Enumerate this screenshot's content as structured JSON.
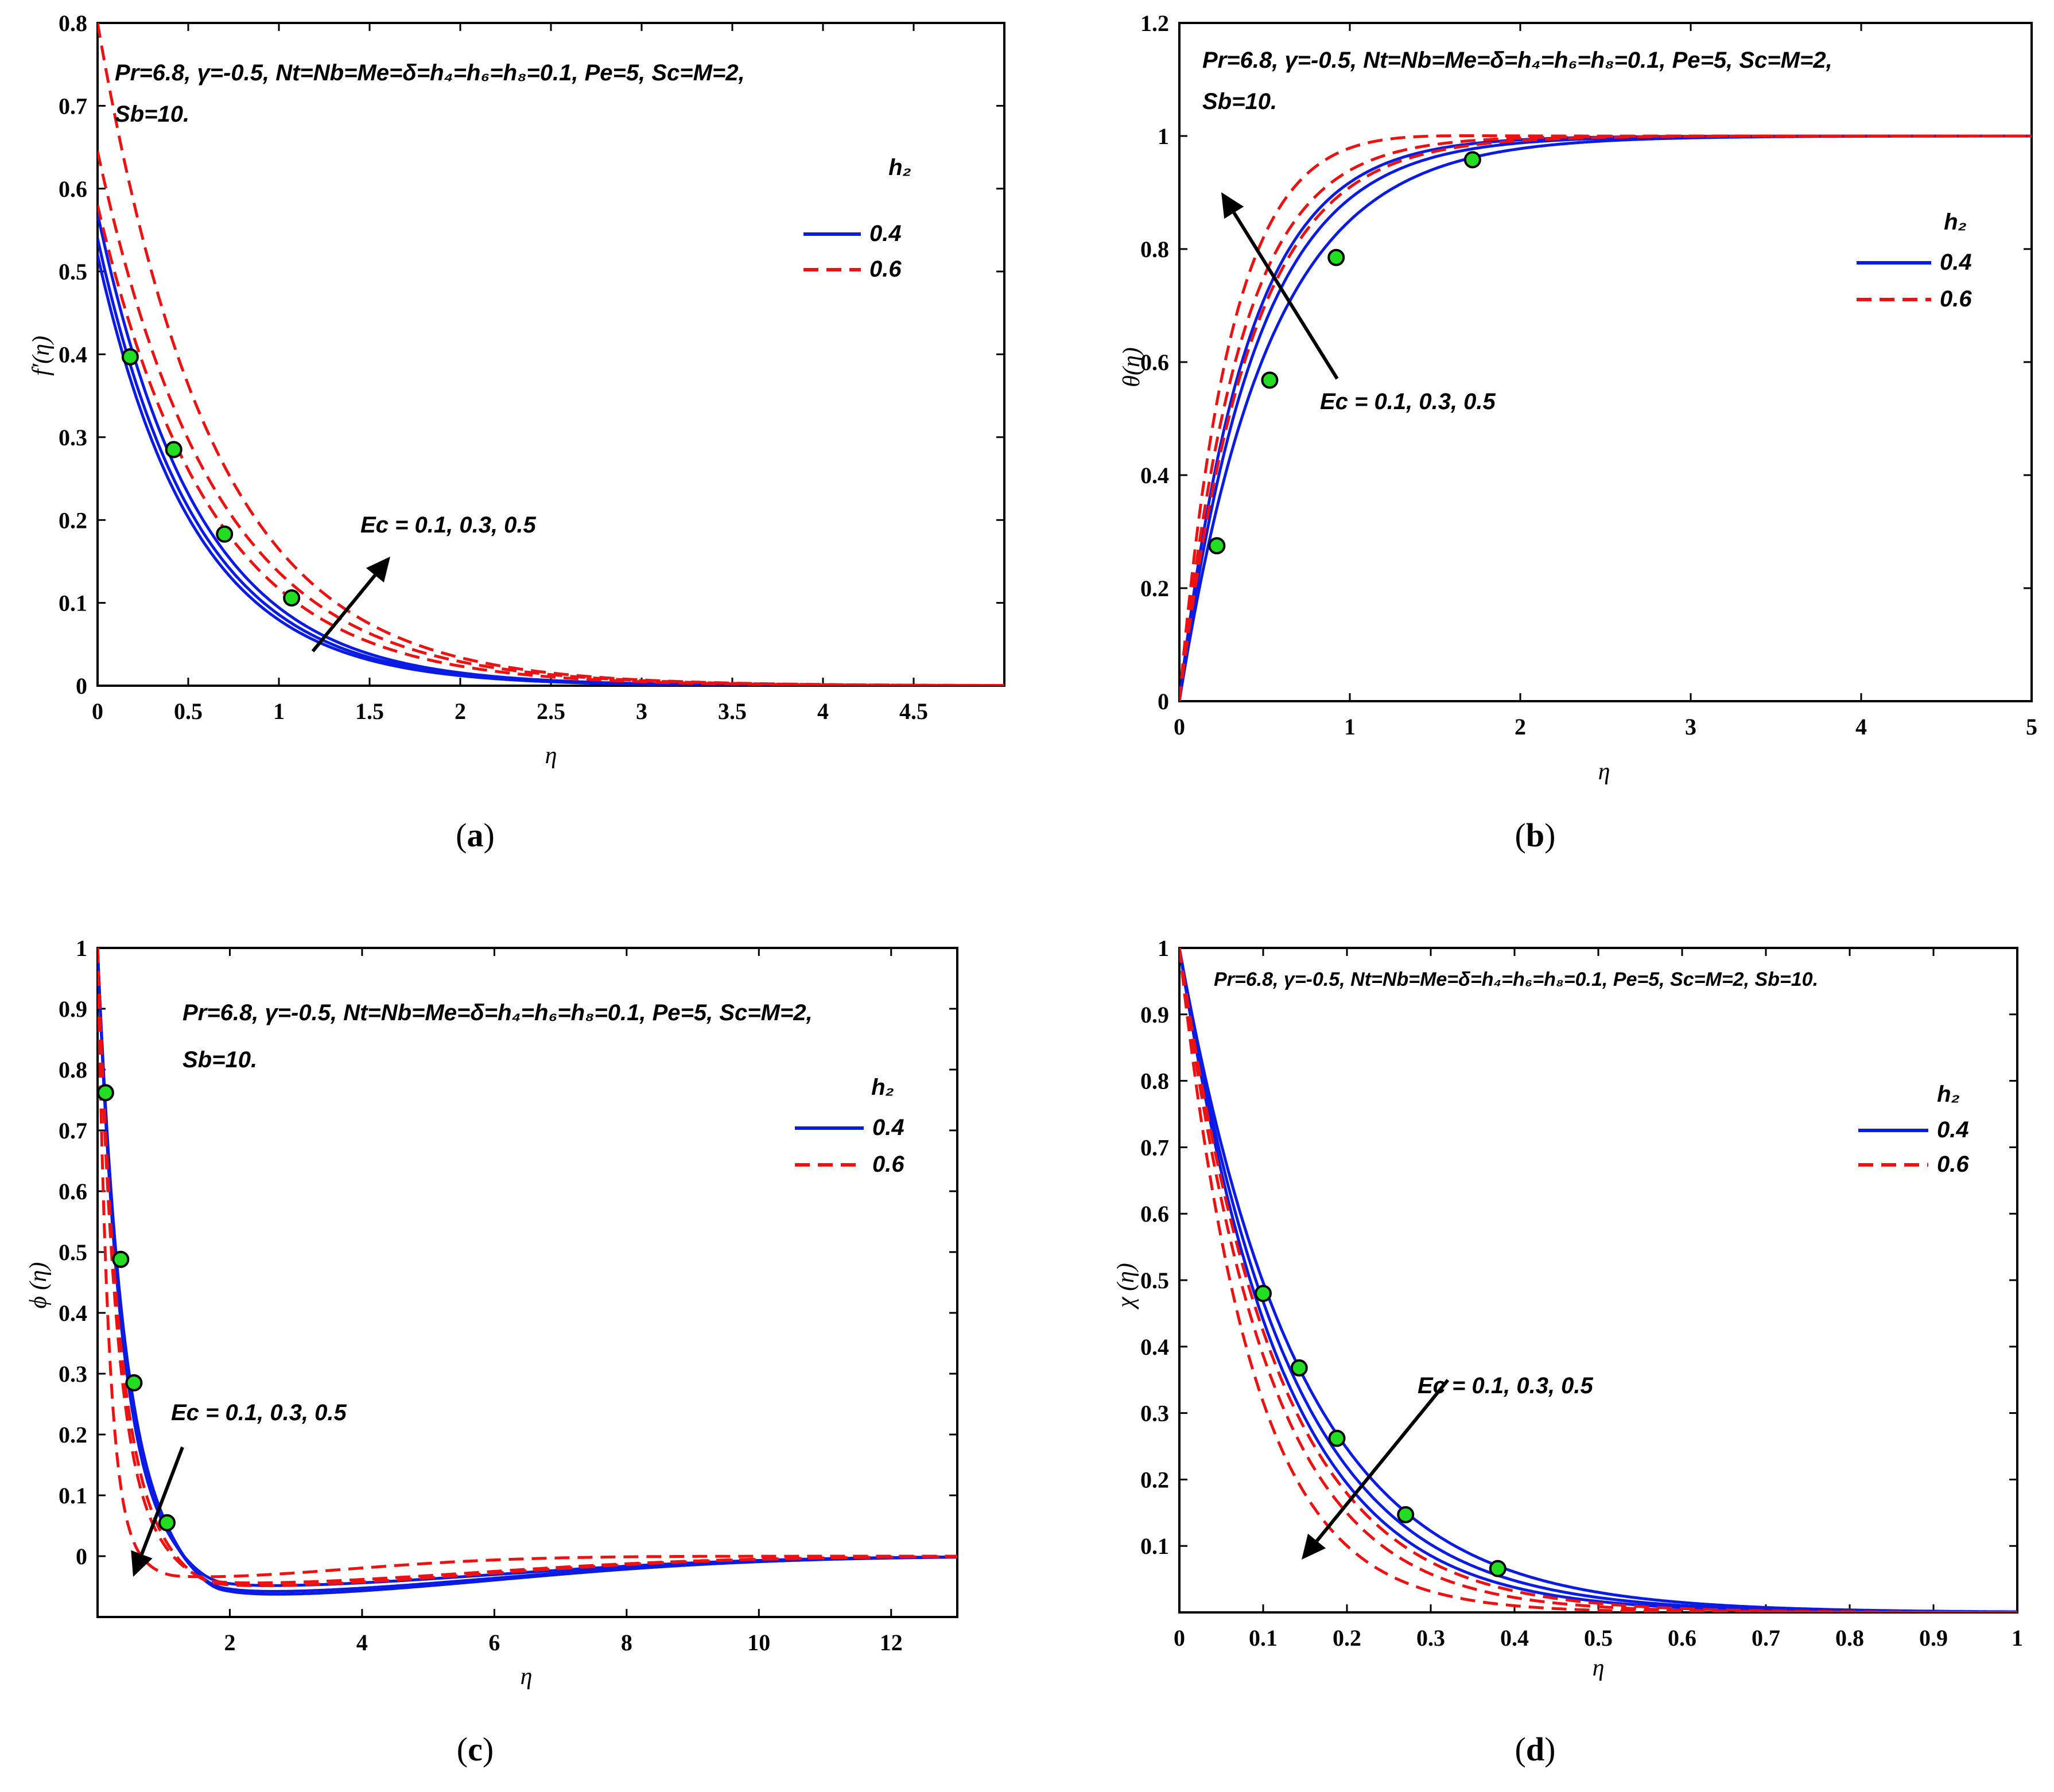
{
  "figure": {
    "colors": {
      "solid": "#0b1be6",
      "dashed": "#ee1111",
      "marker": "#22dd22",
      "arrow": "#000000"
    }
  },
  "chart_data": [
    {
      "id": "a",
      "type": "line",
      "caption": "(a)",
      "xlabel": "η",
      "ylabel": "f′(η)",
      "xlim": [
        0,
        5
      ],
      "ylim": [
        0,
        0.8
      ],
      "xticks": [
        "0",
        "0.5",
        "1",
        "1.5",
        "2",
        "2.5",
        "3",
        "3.5",
        "4",
        "4.5"
      ],
      "yticks": [
        "0",
        "0.1",
        "0.2",
        "0.3",
        "0.4",
        "0.5",
        "0.6",
        "0.7",
        "0.8"
      ],
      "params": [
        "Pr=6.8,  γ=-0.5, Nt=Nb=Me=δ=h₄=h₆=h₈=0.1, Pe=5, Sc=M=2,",
        "Sb=10."
      ],
      "legend": {
        "title": "h₂",
        "entries": [
          "0.4",
          "0.6"
        ],
        "position": "upper-right"
      },
      "arrow_label": "Ec = 0.1, 0.3, 0.5",
      "parameter_values": [
        0.1,
        0.3,
        0.5
      ],
      "series": [
        {
          "name": "h2=0.4, Ec=0.1",
          "style": "solid",
          "model": "exp",
          "a": 0.52,
          "k": 1.88
        },
        {
          "name": "h2=0.4, Ec=0.3",
          "style": "solid",
          "model": "exp",
          "a": 0.54,
          "k": 1.84
        },
        {
          "name": "h2=0.4, Ec=0.5",
          "style": "solid",
          "model": "exp",
          "a": 0.57,
          "k": 1.8
        },
        {
          "name": "h2=0.6, Ec=0.1",
          "style": "dashed",
          "model": "exp",
          "a": 0.58,
          "k": 1.6
        },
        {
          "name": "h2=0.6, Ec=0.3",
          "style": "dashed",
          "model": "exp",
          "a": 0.645,
          "k": 1.55
        },
        {
          "name": "h2=0.6, Ec=0.5",
          "style": "dashed",
          "model": "exp",
          "a": 0.8,
          "k": 1.58
        }
      ],
      "markers": [
        [
          0.18,
          0.397
        ],
        [
          0.42,
          0.285
        ],
        [
          0.7,
          0.183
        ],
        [
          1.07,
          0.106
        ]
      ]
    },
    {
      "id": "b",
      "type": "line",
      "caption": "(b)",
      "xlabel": "η",
      "ylabel": "θ(η)",
      "xlim": [
        0,
        5
      ],
      "ylim": [
        0,
        1.2
      ],
      "xticks": [
        "0",
        "1",
        "2",
        "3",
        "4",
        "5"
      ],
      "yticks": [
        "0",
        "0.2",
        "0.4",
        "0.6",
        "0.8",
        "1",
        "1.2"
      ],
      "params": [
        "Pr=6.8,  γ=-0.5, Nt=Nb=Me=δ=h₄=h₆=h₈=0.1, Pe=5, Sc=M=2,",
        "Sb=10."
      ],
      "legend": {
        "title": "h₂",
        "entries": [
          "0.4",
          "0.6"
        ],
        "position": "right"
      },
      "arrow_label": "Ec = 0.1, 0.3, 0.5",
      "parameter_values": [
        0.1,
        0.3,
        0.5
      ],
      "series": [
        {
          "name": "h2=0.4, Ec=0.1",
          "style": "solid",
          "model": "rise",
          "k": 1.9
        },
        {
          "name": "h2=0.4, Ec=0.3",
          "style": "solid",
          "model": "rise",
          "k": 2.2
        },
        {
          "name": "h2=0.4, Ec=0.5",
          "style": "solid",
          "model": "rise",
          "k": 2.5
        },
        {
          "name": "h2=0.6, Ec=0.1",
          "style": "dashed",
          "model": "rise",
          "k": 2.4
        },
        {
          "name": "h2=0.6, Ec=0.3",
          "style": "dashed",
          "model": "rise",
          "k": 2.8
        },
        {
          "name": "h2=0.6, Ec=0.5",
          "style": "dashed",
          "model": "overshoot",
          "k": 3.4,
          "b": 0.04,
          "c": 1.2
        }
      ],
      "markers": [
        [
          0.22,
          0.275
        ],
        [
          0.53,
          0.568
        ],
        [
          0.92,
          0.785
        ],
        [
          1.72,
          0.958
        ]
      ]
    },
    {
      "id": "c",
      "type": "line",
      "caption": "(c)",
      "xlabel": "η",
      "ylabel": "ϕ (η)",
      "xlim": [
        0,
        13
      ],
      "ylim": [
        -0.1,
        1.0
      ],
      "xticks": [
        "2",
        "4",
        "6",
        "8",
        "10",
        "12"
      ],
      "yticks": [
        "0",
        "0.1",
        "0.2",
        "0.3",
        "0.4",
        "0.5",
        "0.6",
        "0.7",
        "0.8",
        "0.9",
        "1"
      ],
      "params": [
        "Pr=6.8,  γ=-0.5, Nt=Nb=Me=δ=h₄=h₆=h₈=0.1, Pe=5, Sc=M=2,",
        "Sb=10."
      ],
      "legend": {
        "title": "h₂",
        "entries": [
          "0.4",
          "0.6"
        ],
        "position": "upper-right"
      },
      "arrow_label": "Ec = 0.1, 0.3, 0.5",
      "parameter_values": [
        0.1,
        0.3,
        0.5
      ],
      "series": [
        {
          "name": "h2=0.4, Ec=0.1",
          "style": "solid",
          "model": "osc",
          "k": 2.5,
          "b": 0.065,
          "c": 0.55,
          "s": 1.9,
          "w": 1.9
        },
        {
          "name": "h2=0.4, Ec=0.3",
          "style": "solid",
          "model": "osc",
          "k": 2.6,
          "b": 0.06,
          "c": 0.55,
          "s": 1.9,
          "w": 1.9
        },
        {
          "name": "h2=0.4, Ec=0.5",
          "style": "solid",
          "model": "osc",
          "k": 2.7,
          "b": 0.05,
          "c": 0.55,
          "s": 1.9,
          "w": 1.9
        },
        {
          "name": "h2=0.6, Ec=0.1",
          "style": "dashed",
          "model": "osc",
          "k": 3.0,
          "b": 0.05,
          "c": 0.55,
          "s": 1.8,
          "w": 1.8
        },
        {
          "name": "h2=0.6, Ec=0.3",
          "style": "dashed",
          "model": "osc",
          "k": 3.3,
          "b": 0.045,
          "c": 0.55,
          "s": 1.8,
          "w": 1.8
        },
        {
          "name": "h2=0.6, Ec=0.5",
          "style": "dashed",
          "model": "osc",
          "k": 6.0,
          "b": 0.035,
          "c": 0.7,
          "s": 1.2,
          "w": 1.2
        }
      ],
      "markers": [
        [
          0.12,
          0.762
        ],
        [
          0.35,
          0.488
        ],
        [
          0.55,
          0.285
        ],
        [
          1.05,
          0.055
        ]
      ]
    },
    {
      "id": "d",
      "type": "line",
      "caption": "(d)",
      "xlabel": "η",
      "ylabel": "χ (η)",
      "xlim": [
        0,
        1
      ],
      "ylim": [
        0,
        1
      ],
      "xticks": [
        "0",
        "0.1",
        "0.2",
        "0.3",
        "0.4",
        "0.5",
        "0.6",
        "0.7",
        "0.8",
        "0.9",
        "1"
      ],
      "yticks": [
        "0.1",
        "0.2",
        "0.3",
        "0.4",
        "0.5",
        "0.6",
        "0.7",
        "0.8",
        "0.9",
        "1"
      ],
      "params": [
        "Pr=6.8,  γ=-0.5, Nt=Nb=Me=δ=h₄=h₆=h₈=0.1, Pe=5, Sc=M=2, Sb=10."
      ],
      "legend": {
        "title": "h₂",
        "entries": [
          "0.4",
          "0.6"
        ],
        "position": "upper-right"
      },
      "arrow_label": "Ec = 0.1, 0.3, 0.5",
      "parameter_values": [
        0.1,
        0.3,
        0.5
      ],
      "series": [
        {
          "name": "h2=0.4, Ec=0.1",
          "style": "solid",
          "model": "exp",
          "a": 1.0,
          "k": 7.0
        },
        {
          "name": "h2=0.4, Ec=0.3",
          "style": "solid",
          "model": "exp",
          "a": 1.0,
          "k": 7.6
        },
        {
          "name": "h2=0.4, Ec=0.5",
          "style": "solid",
          "model": "exp",
          "a": 1.0,
          "k": 8.2
        },
        {
          "name": "h2=0.6, Ec=0.1",
          "style": "dashed",
          "model": "exp",
          "a": 1.0,
          "k": 8.6
        },
        {
          "name": "h2=0.6, Ec=0.3",
          "style": "dashed",
          "model": "exp",
          "a": 1.0,
          "k": 9.5
        },
        {
          "name": "h2=0.6, Ec=0.5",
          "style": "dashed",
          "model": "exp",
          "a": 1.0,
          "k": 11.5
        }
      ],
      "markers": [
        [
          0.1,
          0.48
        ],
        [
          0.143,
          0.368
        ],
        [
          0.188,
          0.262
        ],
        [
          0.27,
          0.147
        ],
        [
          0.38,
          0.066
        ]
      ]
    }
  ]
}
